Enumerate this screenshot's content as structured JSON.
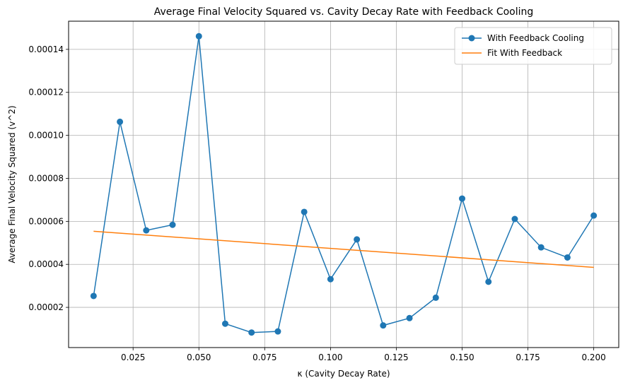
{
  "chart_data": {
    "type": "line",
    "title": "Average Final Velocity Squared vs. Cavity Decay Rate with Feedback Cooling",
    "xlabel": "κ (Cavity Decay Rate)",
    "ylabel": "Average Final Velocity Squared (v^2)",
    "xlim": [
      0.0005,
      0.2095
    ],
    "ylim": [
      1.3e-06,
      0.0001531
    ],
    "grid": true,
    "legend_position": "top-right",
    "x_ticks": [
      0.025,
      0.05,
      0.075,
      0.1,
      0.125,
      0.15,
      0.175,
      0.2
    ],
    "x_tick_labels": [
      "0.025",
      "0.050",
      "0.075",
      "0.100",
      "0.125",
      "0.150",
      "0.175",
      "0.200"
    ],
    "y_ticks": [
      2e-05,
      4e-05,
      6e-05,
      8e-05,
      0.0001,
      0.00012,
      0.00014
    ],
    "y_tick_labels": [
      "0.00002",
      "0.00004",
      "0.00006",
      "0.00008",
      "0.00010",
      "0.00012",
      "0.00014"
    ],
    "series": [
      {
        "name": "With Feedback Cooling",
        "color": "#1f77b4",
        "marker": "circle",
        "x": [
          0.01,
          0.02,
          0.03,
          0.04,
          0.05,
          0.06,
          0.07,
          0.08,
          0.09,
          0.1,
          0.11,
          0.12,
          0.13,
          0.14,
          0.15,
          0.16,
          0.17,
          0.18,
          0.19,
          0.2
        ],
        "y": [
          2.53e-05,
          0.0001063,
          5.58e-05,
          5.84e-05,
          0.0001461,
          1.24e-05,
          8.3e-06,
          8.8e-06,
          6.44e-05,
          3.31e-05,
          5.16e-05,
          1.16e-05,
          1.5e-05,
          2.45e-05,
          7.06e-05,
          3.19e-05,
          6.11e-05,
          4.79e-05,
          4.32e-05,
          6.27e-05
        ]
      },
      {
        "name": "Fit With Feedback",
        "color": "#ff7f0e",
        "marker": "none",
        "x": [
          0.01,
          0.2
        ],
        "y": [
          5.54e-05,
          3.86e-05
        ]
      }
    ]
  }
}
